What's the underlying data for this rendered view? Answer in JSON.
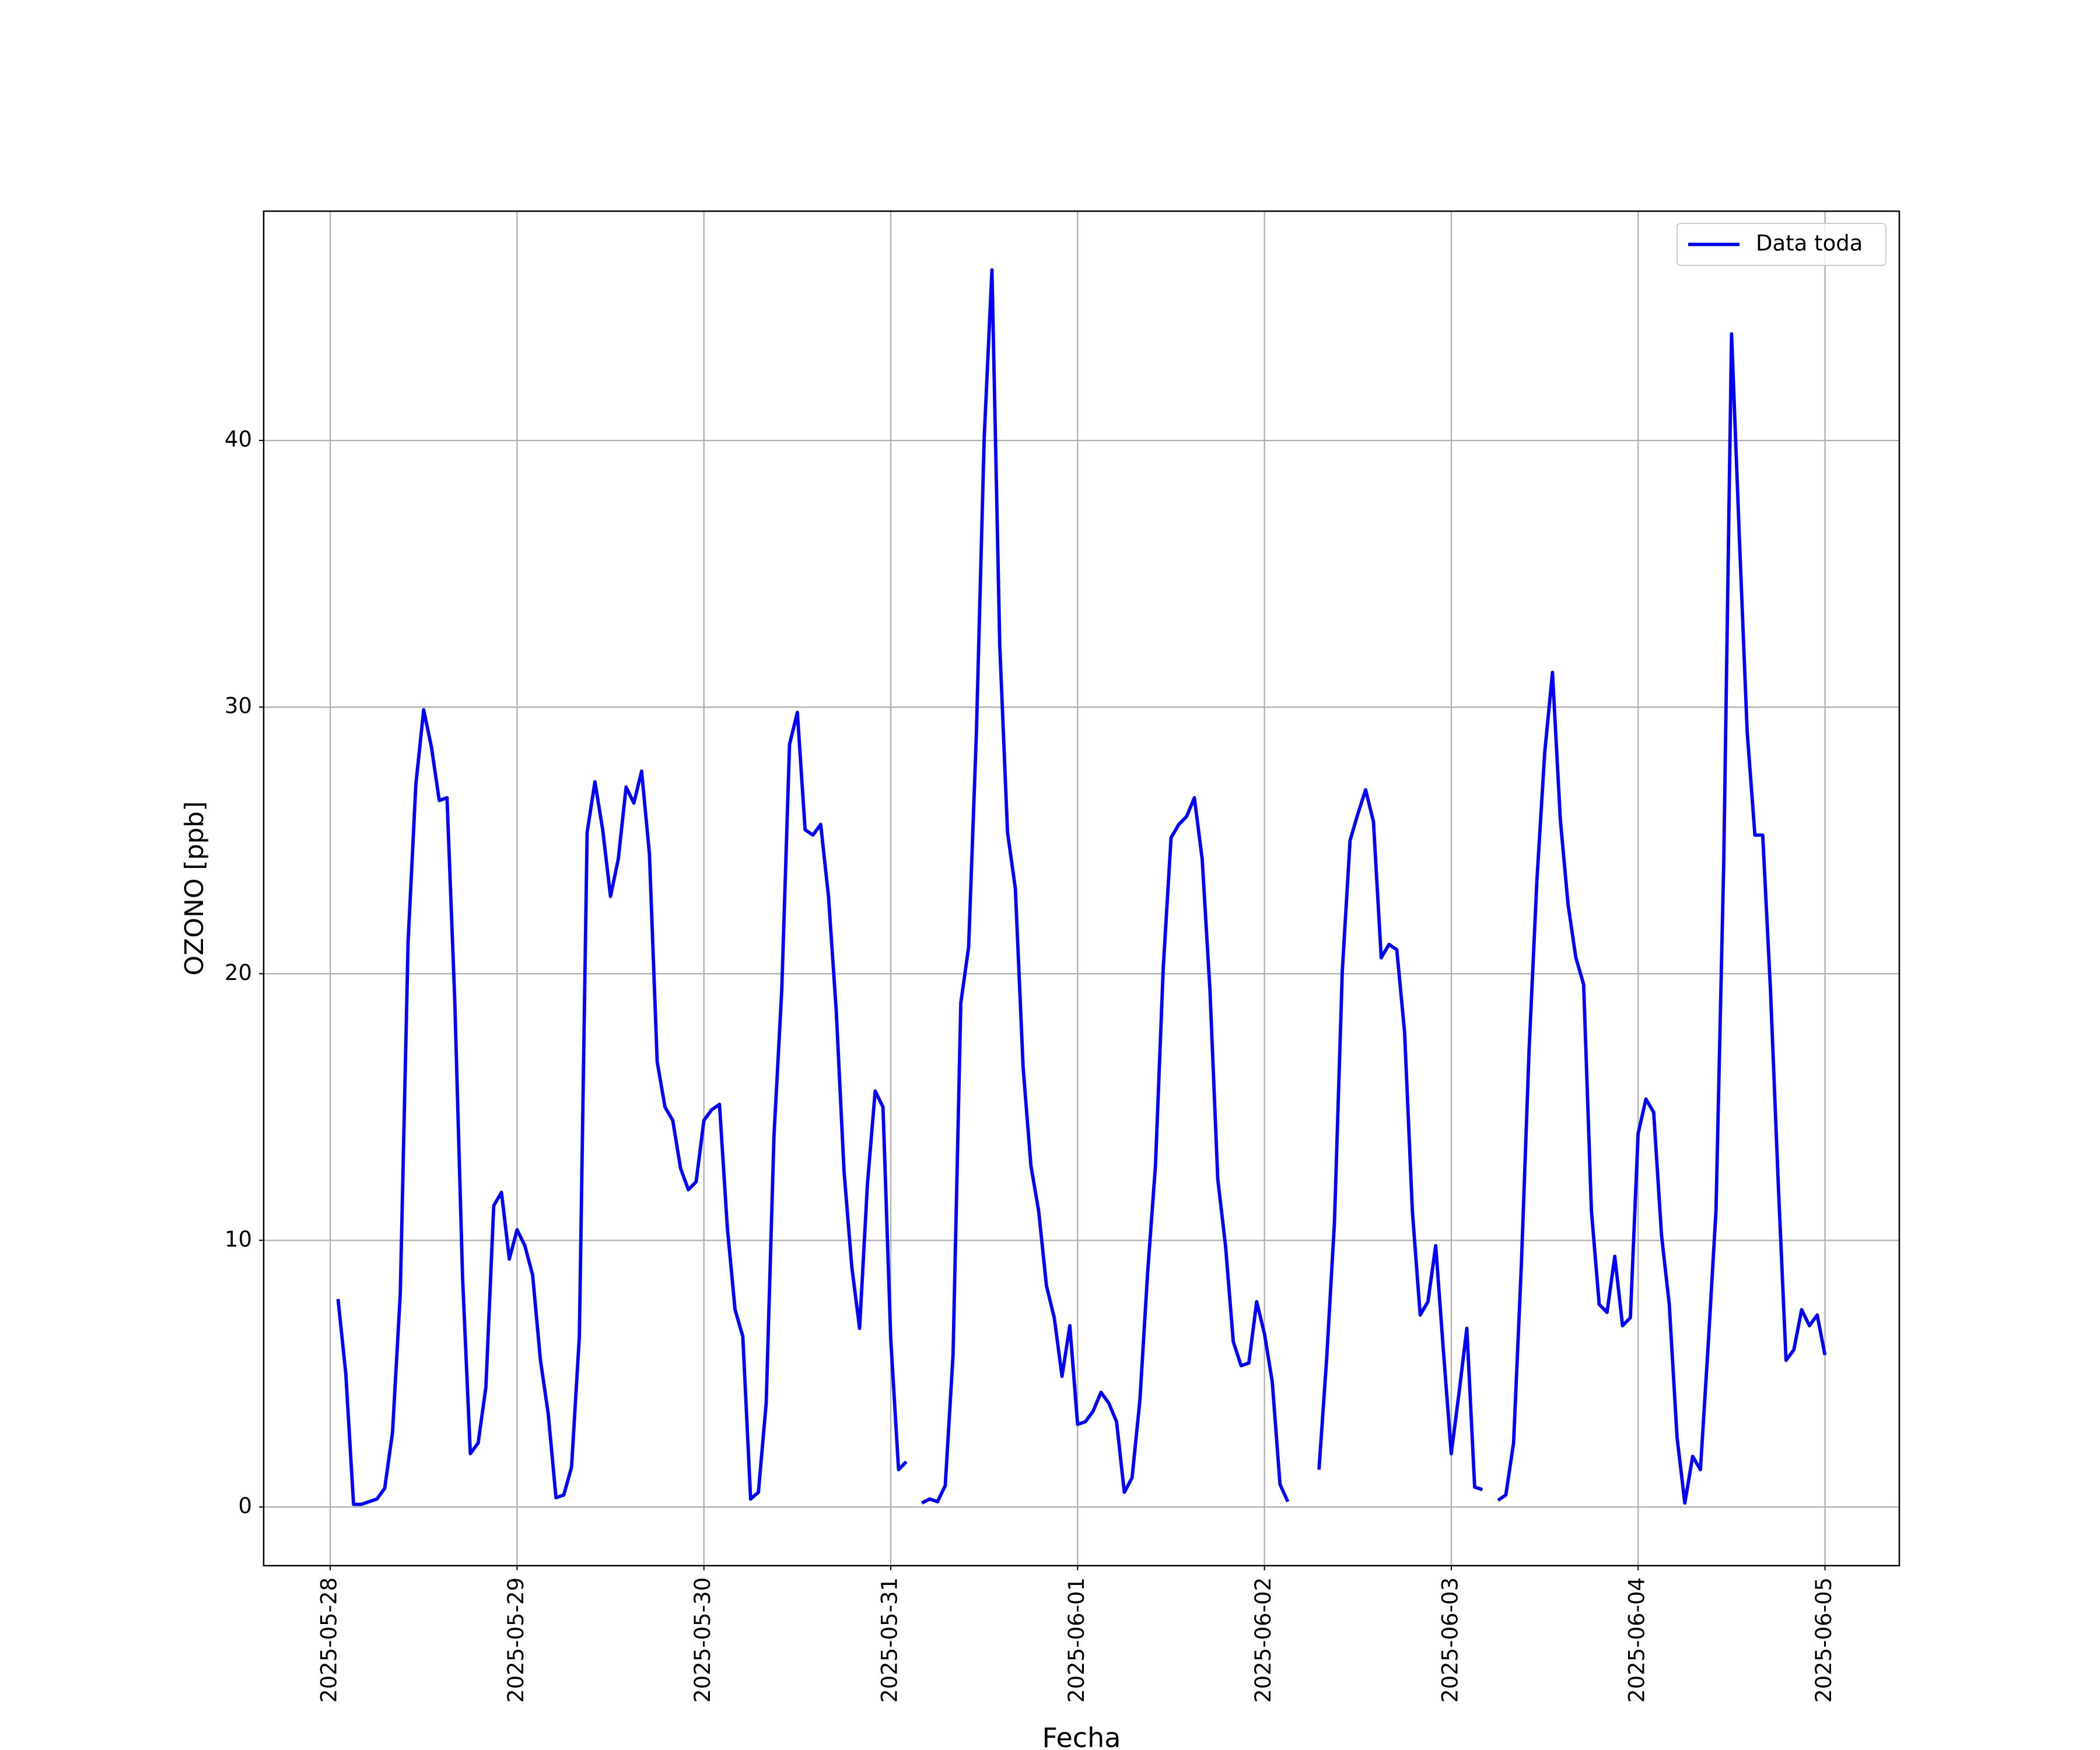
{
  "chart_data": {
    "type": "line",
    "xlabel": "Fecha",
    "ylabel": "OZONO [ppb]",
    "legend": "upper right",
    "grid": true,
    "xlim": [
      "2025-05-27 15:27",
      "2025-06-05 09:33"
    ],
    "xticks": [
      "2025-05-28",
      "2025-05-29",
      "2025-05-30",
      "2025-05-31",
      "2025-06-01",
      "2025-06-02",
      "2025-06-03",
      "2025-06-04",
      "2025-06-05"
    ],
    "ylim": [
      -2.2,
      48.6
    ],
    "yticks": [
      0,
      10,
      20,
      30,
      40
    ],
    "x": [
      "2025-05-28 01:00",
      "2025-05-28 02:00",
      "2025-05-28 03:00",
      "2025-05-28 04:00",
      "2025-05-28 05:00",
      "2025-05-28 06:00",
      "2025-05-28 07:00",
      "2025-05-28 08:00",
      "2025-05-28 09:00",
      "2025-05-28 10:00",
      "2025-05-28 11:00",
      "2025-05-28 12:00",
      "2025-05-28 13:00",
      "2025-05-28 14:00",
      "2025-05-28 15:00",
      "2025-05-28 16:00",
      "2025-05-28 17:00",
      "2025-05-28 18:00",
      "2025-05-28 19:00",
      "2025-05-28 20:00",
      "2025-05-28 21:00",
      "2025-05-28 22:00",
      "2025-05-28 23:00",
      "2025-05-29 00:00",
      "2025-05-29 01:00",
      "2025-05-29 02:00",
      "2025-05-29 03:00",
      "2025-05-29 04:00",
      "2025-05-29 05:00",
      "2025-05-29 06:00",
      "2025-05-29 07:00",
      "2025-05-29 08:00",
      "2025-05-29 09:00",
      "2025-05-29 10:00",
      "2025-05-29 11:00",
      "2025-05-29 12:00",
      "2025-05-29 13:00",
      "2025-05-29 14:00",
      "2025-05-29 15:00",
      "2025-05-29 16:00",
      "2025-05-29 17:00",
      "2025-05-29 18:00",
      "2025-05-29 19:00",
      "2025-05-29 20:00",
      "2025-05-29 21:00",
      "2025-05-29 22:00",
      "2025-05-29 23:00",
      "2025-05-30 00:00",
      "2025-05-30 01:00",
      "2025-05-30 02:00",
      "2025-05-30 03:00",
      "2025-05-30 04:00",
      "2025-05-30 05:00",
      "2025-05-30 06:00",
      "2025-05-30 07:00",
      "2025-05-30 08:00",
      "2025-05-30 09:00",
      "2025-05-30 10:00",
      "2025-05-30 11:00",
      "2025-05-30 12:00",
      "2025-05-30 13:00",
      "2025-05-30 14:00",
      "2025-05-30 15:00",
      "2025-05-30 16:00",
      "2025-05-30 17:00",
      "2025-05-30 18:00",
      "2025-05-30 19:00",
      "2025-05-30 20:00",
      "2025-05-30 21:00",
      "2025-05-30 22:00",
      "2025-05-30 23:00",
      "2025-05-31 00:00",
      "2025-05-31 01:00",
      "2025-05-31 02:00",
      "2025-05-31 03:00",
      "2025-05-31 04:00",
      "2025-05-31 05:00",
      "2025-05-31 06:00",
      "2025-05-31 07:00",
      "2025-05-31 08:00",
      "2025-05-31 09:00",
      "2025-05-31 10:00",
      "2025-05-31 11:00",
      "2025-05-31 12:00",
      "2025-05-31 13:00",
      "2025-05-31 14:00",
      "2025-05-31 15:00",
      "2025-05-31 16:00",
      "2025-05-31 17:00",
      "2025-05-31 18:00",
      "2025-05-31 19:00",
      "2025-05-31 20:00",
      "2025-05-31 21:00",
      "2025-05-31 22:00",
      "2025-05-31 23:00",
      "2025-06-01 00:00",
      "2025-06-01 01:00",
      "2025-06-01 02:00",
      "2025-06-01 03:00",
      "2025-06-01 04:00",
      "2025-06-01 05:00",
      "2025-06-01 06:00",
      "2025-06-01 07:00",
      "2025-06-01 08:00",
      "2025-06-01 09:00",
      "2025-06-01 10:00",
      "2025-06-01 11:00",
      "2025-06-01 12:00",
      "2025-06-01 13:00",
      "2025-06-01 14:00",
      "2025-06-01 15:00",
      "2025-06-01 16:00",
      "2025-06-01 17:00",
      "2025-06-01 18:00",
      "2025-06-01 19:00",
      "2025-06-01 20:00",
      "2025-06-01 21:00",
      "2025-06-01 22:00",
      "2025-06-01 23:00",
      "2025-06-02 00:00",
      "2025-06-02 01:00",
      "2025-06-02 02:00",
      "2025-06-02 03:00",
      "2025-06-02 04:00",
      "2025-06-02 05:00",
      "2025-06-02 06:00",
      "2025-06-02 07:00",
      "2025-06-02 08:00",
      "2025-06-02 09:00",
      "2025-06-02 10:00",
      "2025-06-02 11:00",
      "2025-06-02 12:00",
      "2025-06-02 13:00",
      "2025-06-02 14:00",
      "2025-06-02 15:00",
      "2025-06-02 16:00",
      "2025-06-02 17:00",
      "2025-06-02 18:00",
      "2025-06-02 19:00",
      "2025-06-02 20:00",
      "2025-06-02 21:00",
      "2025-06-02 22:00",
      "2025-06-02 23:00",
      "2025-06-03 00:00",
      "2025-06-03 01:00",
      "2025-06-03 02:00",
      "2025-06-03 03:00",
      "2025-06-03 04:00",
      "2025-06-03 05:00",
      "2025-06-03 06:00",
      "2025-06-03 07:00",
      "2025-06-03 08:00",
      "2025-06-03 09:00",
      "2025-06-03 10:00",
      "2025-06-03 11:00",
      "2025-06-03 12:00",
      "2025-06-03 13:00",
      "2025-06-03 14:00",
      "2025-06-03 15:00",
      "2025-06-03 16:00",
      "2025-06-03 17:00",
      "2025-06-03 18:00",
      "2025-06-03 19:00",
      "2025-06-03 20:00",
      "2025-06-03 21:00",
      "2025-06-03 22:00",
      "2025-06-03 23:00",
      "2025-06-04 00:00",
      "2025-06-04 01:00",
      "2025-06-04 02:00",
      "2025-06-04 03:00",
      "2025-06-04 04:00",
      "2025-06-04 05:00",
      "2025-06-04 06:00",
      "2025-06-04 07:00",
      "2025-06-04 08:00",
      "2025-06-04 09:00",
      "2025-06-04 10:00",
      "2025-06-04 11:00",
      "2025-06-04 12:00",
      "2025-06-04 13:00",
      "2025-06-04 14:00",
      "2025-06-04 15:00",
      "2025-06-04 16:00",
      "2025-06-04 17:00",
      "2025-06-04 18:00",
      "2025-06-04 19:00",
      "2025-06-04 20:00",
      "2025-06-04 21:00",
      "2025-06-04 22:00",
      "2025-06-04 23:00",
      "2025-06-05 00:00"
    ],
    "series": [
      {
        "name": "Data toda",
        "color": "#0000ff",
        "values": [
          7.8,
          5.0,
          0.1,
          0.1,
          0.2,
          0.3,
          0.7,
          2.8,
          8.0,
          21.2,
          27.1,
          29.9,
          28.5,
          26.5,
          26.6,
          19.0,
          8.6,
          2.0,
          2.4,
          4.5,
          11.3,
          11.8,
          9.3,
          10.4,
          9.8,
          8.7,
          5.5,
          3.5,
          0.35,
          0.45,
          1.5,
          6.4,
          25.3,
          27.2,
          25.4,
          22.9,
          24.3,
          27.0,
          26.4,
          27.6,
          24.5,
          16.7,
          15.0,
          14.5,
          12.7,
          11.9,
          12.2,
          14.5,
          14.9,
          15.1,
          10.5,
          7.4,
          6.4,
          0.3,
          0.55,
          3.9,
          13.9,
          19.4,
          28.6,
          29.8,
          25.4,
          25.2,
          25.6,
          22.9,
          18.6,
          12.6,
          9.0,
          6.7,
          12.1,
          15.6,
          15.0,
          6.3,
          1.4,
          1.7,
          null,
          0.15,
          0.3,
          0.2,
          0.8,
          5.7,
          18.9,
          21.0,
          29.0,
          40.1,
          46.4,
          32.3,
          25.3,
          23.2,
          16.5,
          12.8,
          11.1,
          8.3,
          7.1,
          4.9,
          6.8,
          3.1,
          3.2,
          3.6,
          4.3,
          3.9,
          3.2,
          0.55,
          1.1,
          4.0,
          8.8,
          12.8,
          20.2,
          25.1,
          25.6,
          25.9,
          26.6,
          24.3,
          19.4,
          12.3,
          9.8,
          6.2,
          5.3,
          5.4,
          7.7,
          6.5,
          4.7,
          0.85,
          0.2,
          null,
          null,
          null,
          1.4,
          5.6,
          10.7,
          20.1,
          25.0,
          26.0,
          26.9,
          25.7,
          20.6,
          21.1,
          20.9,
          17.8,
          11.1,
          7.2,
          7.7,
          9.8,
          5.8,
          2.0,
          4.3,
          6.7,
          0.75,
          0.65,
          null,
          0.25,
          0.45,
          2.4,
          9.1,
          17.2,
          23.5,
          28.3,
          31.3,
          25.8,
          22.6,
          20.6,
          19.6,
          11.1,
          7.6,
          7.3,
          9.4,
          6.8,
          7.1,
          14.0,
          15.3,
          14.8,
          10.2,
          7.6,
          2.6,
          0.15,
          1.9,
          1.4,
          6.1,
          11.1,
          24.2,
          44.0,
          36.4,
          29.1,
          25.2,
          25.2,
          19.4,
          12.1,
          5.5,
          5.9,
          7.4,
          6.8,
          7.2,
          5.7
        ]
      }
    ]
  }
}
